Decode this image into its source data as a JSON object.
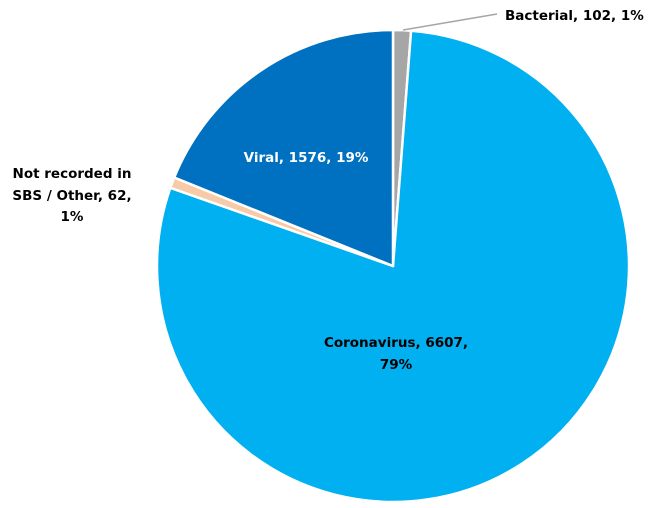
{
  "chart_data": {
    "type": "pie",
    "title": "",
    "categories": [
      "Bacterial",
      "Coronavirus",
      "Not recorded in SBS / Other",
      "Viral"
    ],
    "values": [
      102,
      6607,
      62,
      1576
    ],
    "percentages": [
      1,
      79,
      1,
      19
    ],
    "colors": [
      "#a6a6a6",
      "#00b0f0",
      "#f8cba8",
      "#0070c0"
    ],
    "start_angle": "12 o'clock, clockwise",
    "legend": "none",
    "data_labels": {
      "bacterial": "Bacterial, 102, 1%",
      "coronavirus_line1": "Coronavirus, 6607,",
      "coronavirus_line2": "79%",
      "other_line1": "Not recorded in",
      "other_line2": "SBS / Other, 62,",
      "other_line3": "1%",
      "viral": "Viral, 1576, 19%"
    },
    "label_colors": {
      "outside": "#000000",
      "coronavirus": "#000000",
      "viral": "#ffffff"
    }
  }
}
